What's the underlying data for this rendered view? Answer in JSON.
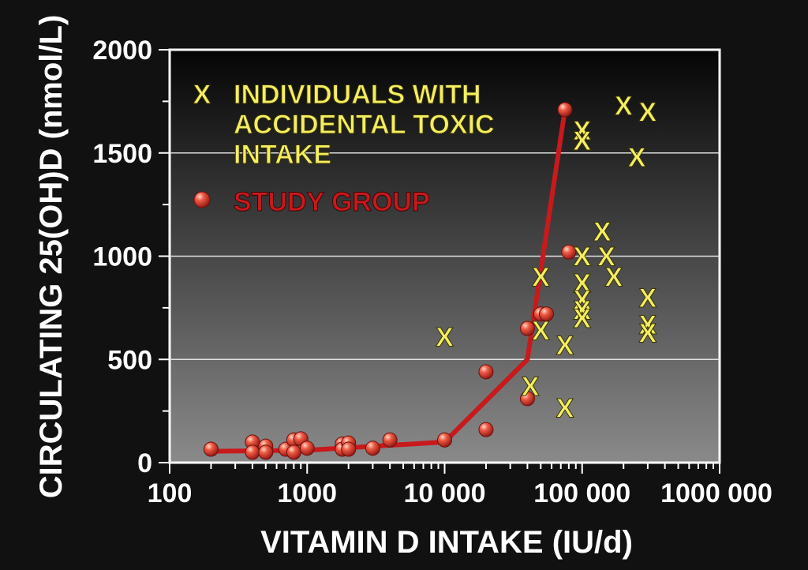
{
  "chart_data": {
    "type": "scatter",
    "xlabel": "VITAMIN D INTAKE (IU/d)",
    "ylabel": "CIRCULATING 25(OH)D (nmol/L)",
    "xscale": "log",
    "xlim": [
      100,
      1000000
    ],
    "ylim": [
      0,
      2000
    ],
    "x_ticks": [
      100,
      1000,
      10000,
      100000,
      1000000
    ],
    "x_tick_labels": [
      "100",
      "1000",
      "10 000",
      "100 000",
      "1000 000"
    ],
    "y_ticks": [
      0,
      500,
      1000,
      1500,
      2000
    ],
    "y_tick_labels": [
      "0",
      "500",
      "1000",
      "1500",
      "2000"
    ],
    "grid": "horizontal",
    "legend": [
      {
        "marker": "X",
        "label_lines": [
          "INDIVIDUALS WITH",
          "ACCIDENTAL TOXIC",
          "INTAKE"
        ]
      },
      {
        "marker": "sphere",
        "label_lines": [
          "STUDY GROUP"
        ]
      }
    ],
    "legend_position": "top-left",
    "series": [
      {
        "label": "STUDY GROUP",
        "style": "points",
        "color": "#d8352f",
        "points": [
          [
            200,
            65
          ],
          [
            400,
            100
          ],
          [
            400,
            50
          ],
          [
            500,
            80
          ],
          [
            500,
            50
          ],
          [
            700,
            65
          ],
          [
            800,
            110
          ],
          [
            800,
            50
          ],
          [
            900,
            115
          ],
          [
            1000,
            70
          ],
          [
            1800,
            90
          ],
          [
            1800,
            65
          ],
          [
            2000,
            95
          ],
          [
            2000,
            65
          ],
          [
            3000,
            70
          ],
          [
            4000,
            110
          ],
          [
            10000,
            110
          ],
          [
            20000,
            440
          ],
          [
            20000,
            160
          ],
          [
            40000,
            650
          ],
          [
            40000,
            310
          ],
          [
            50000,
            720
          ],
          [
            55000,
            720
          ],
          [
            75000,
            1710
          ],
          [
            80000,
            1020
          ]
        ]
      },
      {
        "label": "STUDY GROUP trend",
        "style": "line",
        "color": "#c8191d",
        "points": [
          [
            200,
            55
          ],
          [
            1000,
            60
          ],
          [
            10000,
            100
          ],
          [
            40000,
            500
          ],
          [
            75000,
            1710
          ]
        ]
      },
      {
        "label": "INDIVIDUALS WITH ACCIDENTAL TOXIC INTAKE",
        "style": "x-marker",
        "color": "#f4ee62",
        "points": [
          [
            10000,
            610
          ],
          [
            42000,
            370
          ],
          [
            50000,
            900
          ],
          [
            50000,
            640
          ],
          [
            75000,
            570
          ],
          [
            75000,
            265
          ],
          [
            100000,
            1610
          ],
          [
            100000,
            1560
          ],
          [
            100000,
            1000
          ],
          [
            100000,
            870
          ],
          [
            100000,
            790
          ],
          [
            100000,
            740
          ],
          [
            100000,
            700
          ],
          [
            140000,
            1120
          ],
          [
            150000,
            1000
          ],
          [
            170000,
            900
          ],
          [
            200000,
            1730
          ],
          [
            250000,
            1480
          ],
          [
            300000,
            1700
          ],
          [
            300000,
            800
          ],
          [
            300000,
            670
          ],
          [
            300000,
            630
          ]
        ]
      }
    ]
  }
}
